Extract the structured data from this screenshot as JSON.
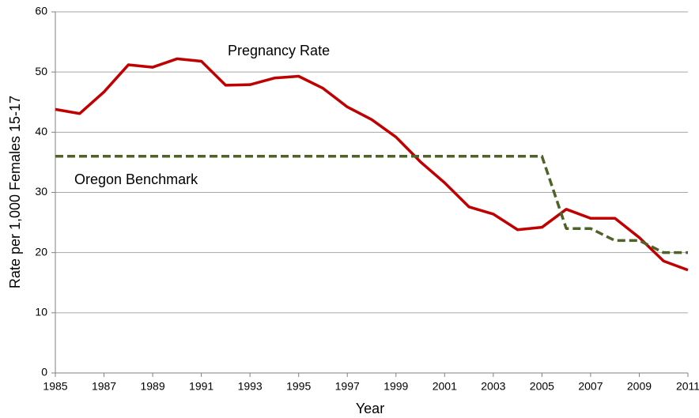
{
  "chart_data": {
    "type": "line",
    "x_label": "Year",
    "y_label": "Rate per 1,000 Females 15-17",
    "x": [
      1985,
      1986,
      1987,
      1988,
      1989,
      1990,
      1991,
      1992,
      1993,
      1994,
      1995,
      1996,
      1997,
      1998,
      1999,
      2000,
      2001,
      2002,
      2003,
      2004,
      2005,
      2006,
      2007,
      2008,
      2009,
      2010,
      2011
    ],
    "series": [
      {
        "name": "Pregnancy Rate",
        "color": "#c00000",
        "dashed": false,
        "values": [
          43.8,
          43.1,
          46.7,
          51.2,
          50.8,
          52.2,
          51.8,
          47.8,
          47.9,
          49.0,
          49.3,
          47.3,
          44.2,
          42.1,
          39.2,
          35.1,
          31.6,
          27.6,
          26.4,
          23.8,
          24.2,
          27.2,
          25.7,
          25.7,
          22.5,
          18.6,
          17.1
        ]
      },
      {
        "name": "Oregon Benchmark",
        "color": "#4f6228",
        "dashed": true,
        "values": [
          36,
          36,
          36,
          36,
          36,
          36,
          36,
          36,
          36,
          36,
          36,
          36,
          36,
          36,
          36,
          36,
          36,
          36,
          36,
          36,
          36,
          24,
          24,
          22,
          22,
          20,
          20
        ]
      }
    ],
    "xlim": [
      1985,
      2011
    ],
    "xticks": [
      1985,
      1987,
      1989,
      1991,
      1993,
      1995,
      1997,
      1999,
      2001,
      2003,
      2005,
      2007,
      2009,
      2011
    ],
    "ylim": [
      0,
      60
    ],
    "yticks": [
      0,
      10,
      20,
      30,
      40,
      50,
      60
    ],
    "grid": true
  }
}
